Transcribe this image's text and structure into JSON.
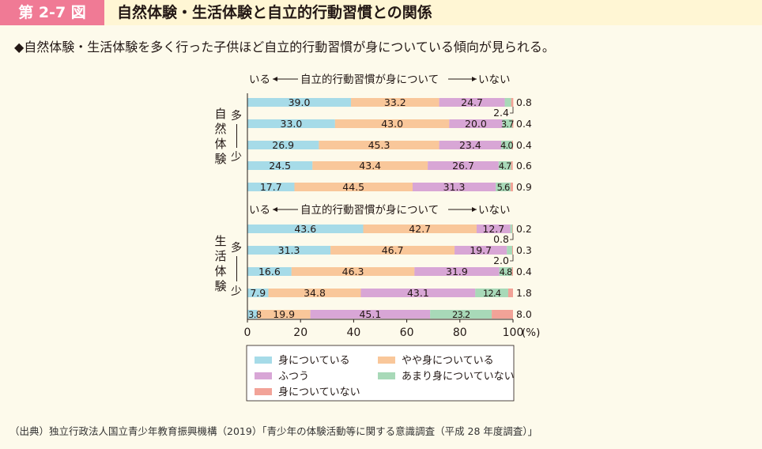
{
  "header": {
    "figure_label": "第 2-7 図",
    "title": "自然体験・生活体験と自立的行動習慣との関係"
  },
  "summary": "◆自然体験・生活体験を多く行った子供ほど自立的行動習慣が身についている傾向が見られる。",
  "source": "（出典）独立行政法人国立青少年教育振興機構（2019）「青少年の体験活動等に関する意識調査（平成 28 年度調査）」",
  "group_labels": {
    "nature": "自然体験",
    "life": "生活体験",
    "many": "多",
    "few": "少"
  },
  "chart_data": [
    {
      "type": "stacked-bar-horizontal",
      "group": "自然体験",
      "header_text": {
        "left": "いる",
        "center": "自立的行動習慣が身について",
        "right": "いない"
      },
      "series": [
        {
          "name": "身についている",
          "color": "#a6dbe8",
          "values": [
            39.0,
            33.0,
            26.9,
            24.5,
            17.7
          ]
        },
        {
          "name": "やや身についている",
          "color": "#f9c79a",
          "values": [
            33.2,
            43.0,
            45.3,
            43.4,
            44.5
          ]
        },
        {
          "name": "ふつう",
          "color": "#d8a6d6",
          "values": [
            24.7,
            20.0,
            23.4,
            26.7,
            31.3
          ]
        },
        {
          "name": "あまり身についていない",
          "color": "#a8d9b8",
          "values": [
            2.4,
            3.7,
            4.0,
            4.7,
            5.6
          ]
        },
        {
          "name": "身についていない",
          "color": "#f2a398",
          "values": [
            0.8,
            0.4,
            0.4,
            0.6,
            0.9
          ]
        }
      ]
    },
    {
      "type": "stacked-bar-horizontal",
      "group": "生活体験",
      "header_text": {
        "left": "いる",
        "center": "自立的行動習慣が身について",
        "right": "いない"
      },
      "series": [
        {
          "name": "身についている",
          "color": "#a6dbe8",
          "values": [
            43.6,
            31.3,
            16.6,
            7.9,
            3.8
          ]
        },
        {
          "name": "やや身についている",
          "color": "#f9c79a",
          "values": [
            42.7,
            46.7,
            46.3,
            34.8,
            19.9
          ]
        },
        {
          "name": "ふつう",
          "color": "#d8a6d6",
          "values": [
            12.7,
            19.7,
            31.9,
            43.1,
            45.1
          ]
        },
        {
          "name": "あまり身についていない",
          "color": "#a8d9b8",
          "values": [
            0.8,
            2.0,
            4.8,
            12.4,
            23.2
          ]
        },
        {
          "name": "身についていない",
          "color": "#f2a398",
          "values": [
            0.2,
            0.3,
            0.4,
            1.8,
            8.0
          ]
        }
      ]
    }
  ],
  "axis": {
    "ticks": [
      "0",
      "20",
      "40",
      "60",
      "80",
      "100"
    ],
    "unit": "(%)",
    "xlim": [
      0,
      100
    ]
  },
  "legend": [
    {
      "label": "身についている",
      "color": "#a6dbe8"
    },
    {
      "label": "やや身についている",
      "color": "#f9c79a"
    },
    {
      "label": "ふつう",
      "color": "#d8a6d6"
    },
    {
      "label": "あまり身についていない",
      "color": "#a8d9b8"
    },
    {
      "label": "身についていない",
      "color": "#f2a398"
    }
  ]
}
